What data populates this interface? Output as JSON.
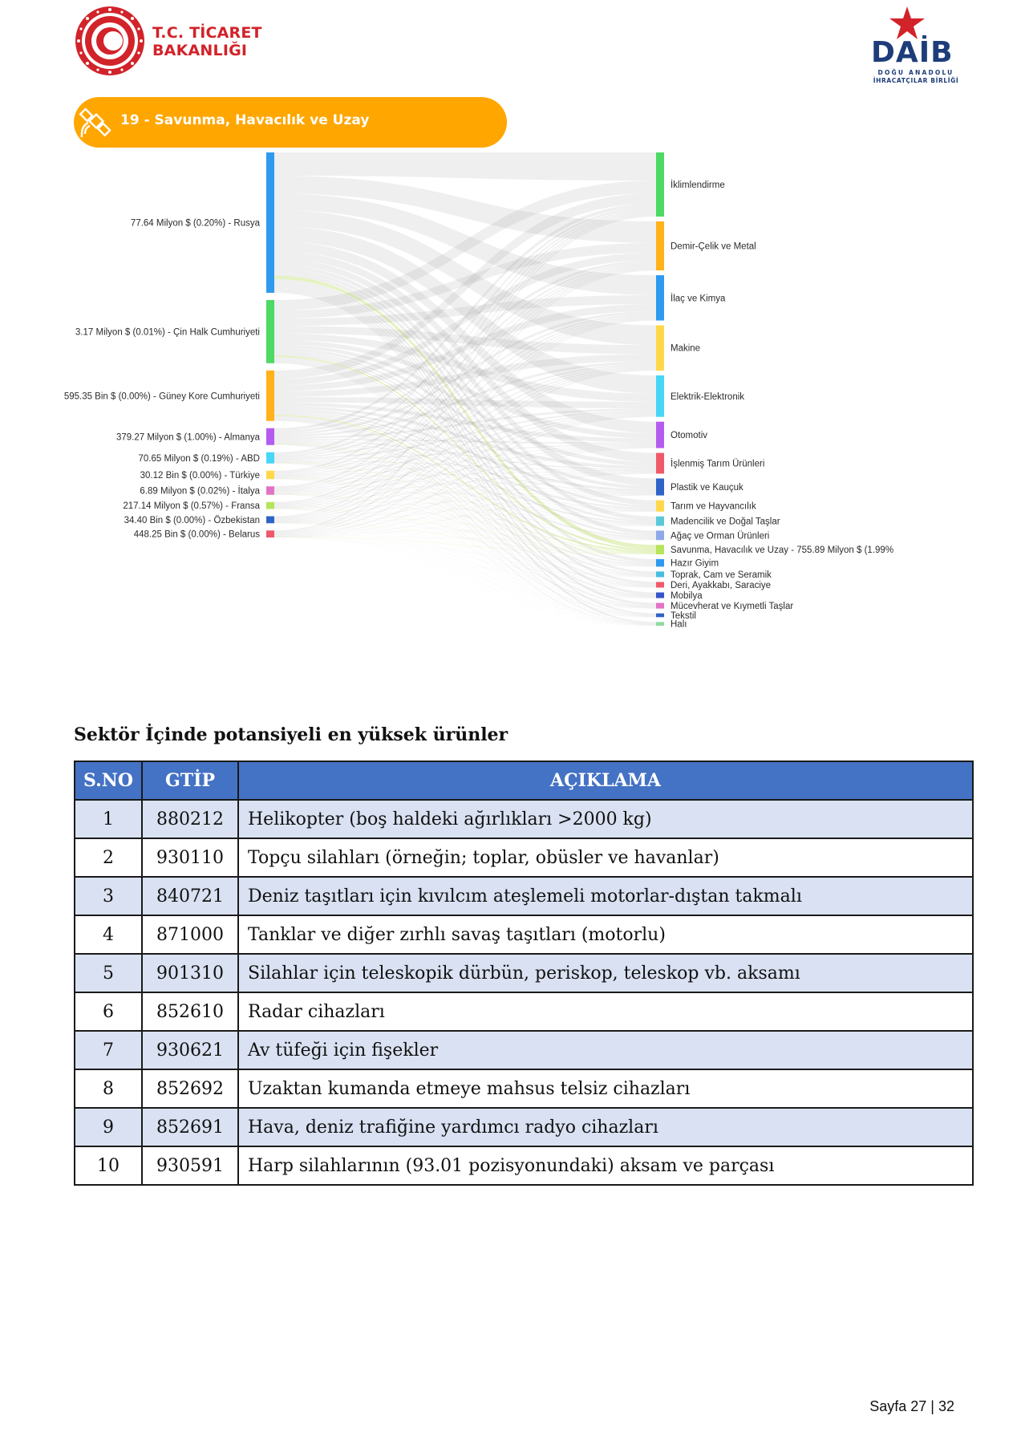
{
  "header": {
    "ministry_line1": "T.C. TİCARET",
    "ministry_line2": "BAKANLIĞI",
    "daib_word": "DAİB",
    "daib_sub1": "DOĞU ANADOLU",
    "daib_sub2": "İHRACATÇILAR BİRLİĞİ"
  },
  "banner": {
    "title": "19 - Savunma, Havacılık ve Uzay"
  },
  "chart_data": {
    "type": "sankey",
    "title": "19 - Savunma, Havacılık ve Uzay",
    "sources": [
      {
        "label": "77.64 Milyon $ (0.20%) - Rusya",
        "color": "#2e9af0",
        "weight": 100
      },
      {
        "label": "3.17 Milyon $ (0.01%) - Çin Halk Cumhuriyeti",
        "color": "#4cd964",
        "weight": 45
      },
      {
        "label": "595.35 Bin $ (0.00%) - Güney Kore Cumhuriyeti",
        "color": "#ffb21a",
        "weight": 36
      },
      {
        "label": "379.27 Milyon $ (1.00%) - Almanya",
        "color": "#b45cf0",
        "weight": 12
      },
      {
        "label": "70.65 Milyon $ (0.19%) - ABD",
        "color": "#47d6f5",
        "weight": 8
      },
      {
        "label": "30.12 Bin $ (0.00%) - Türkiye",
        "color": "#ffd84a",
        "weight": 6
      },
      {
        "label": "6.89 Milyon $ (0.02%) - İtalya",
        "color": "#e372c6",
        "weight": 6
      },
      {
        "label": "217.14 Milyon $ (0.57%) - Fransa",
        "color": "#b6e45a",
        "weight": 5
      },
      {
        "label": "34.40 Bin $ (0.00%) - Özbekistan",
        "color": "#2f63c7",
        "weight": 5
      },
      {
        "label": "448.25 Bin $ (0.00%) - Belarus",
        "color": "#ef5a6a",
        "weight": 5
      }
    ],
    "targets": [
      {
        "label": "İklimlendirme",
        "color": "#4cd964",
        "weight": 34
      },
      {
        "label": "Demir-Çelik ve Metal",
        "color": "#ffb21a",
        "weight": 26
      },
      {
        "label": "İlaç ve Kimya",
        "color": "#2e9af0",
        "weight": 24
      },
      {
        "label": "Makine",
        "color": "#ffd84a",
        "weight": 24
      },
      {
        "label": "Elektrik-Elektronik",
        "color": "#47d6f5",
        "weight": 22
      },
      {
        "label": "Otomotiv",
        "color": "#b45cf0",
        "weight": 14
      },
      {
        "label": "İşlenmiş Tarım Ürünleri",
        "color": "#ef5a6a",
        "weight": 11
      },
      {
        "label": "Plastik ve Kauçuk",
        "color": "#2f63c7",
        "weight": 9
      },
      {
        "label": "Tarım ve Hayvancılık",
        "color": "#ffd84a",
        "weight": 6
      },
      {
        "label": "Madencilik ve Doğal Taşlar",
        "color": "#5bc8d8",
        "weight": 5
      },
      {
        "label": "Ağaç ve Orman Ürünleri",
        "color": "#8ea8e8",
        "weight": 5
      },
      {
        "label": "Savunma, Havacılık ve Uzay - 755.89 Milyon $ (1.99%",
        "color": "#b6e45a",
        "weight": 5
      },
      {
        "label": "Hazır Giyim",
        "color": "#2e9af0",
        "weight": 4
      },
      {
        "label": "Toprak, Cam ve Seramik",
        "color": "#47bde0",
        "weight": 3
      },
      {
        "label": "Deri, Ayakkabı, Saraciye",
        "color": "#ef5a6a",
        "weight": 3
      },
      {
        "label": "Mobilya",
        "color": "#3355c8",
        "weight": 3
      },
      {
        "label": "Mücevherat ve Kıymetli Taşlar",
        "color": "#e372c6",
        "weight": 3
      },
      {
        "label": "Tekstil",
        "color": "#2f63c7",
        "weight": 2
      },
      {
        "label": "Halı",
        "color": "#8edba0",
        "weight": 2
      }
    ],
    "highlight_target": "Savunma, Havacılık ve Uzay - 755.89 Milyon $ (1.99%"
  },
  "section": {
    "title": "Sektör İçinde potansiyeli en yüksek ürünler"
  },
  "table": {
    "headers": [
      "S.NO",
      "GTİP",
      "AÇIKLAMA"
    ],
    "rows": [
      {
        "no": "1",
        "gtip": "880212",
        "desc": "Helikopter (boş haldeki ağırlıkları >2000 kg)"
      },
      {
        "no": "2",
        "gtip": "930110",
        "desc": "Topçu silahları (örneğin; toplar, obüsler ve havanlar)"
      },
      {
        "no": "3",
        "gtip": "840721",
        "desc": "Deniz taşıtları için kıvılcım ateşlemeli motorlar-dıştan takmalı"
      },
      {
        "no": "4",
        "gtip": "871000",
        "desc": "Tanklar ve diğer zırhlı savaş taşıtları (motorlu)"
      },
      {
        "no": "5",
        "gtip": "901310",
        "desc": "Silahlar için teleskopik dürbün, periskop, teleskop vb. aksamı"
      },
      {
        "no": "6",
        "gtip": "852610",
        "desc": "Radar cihazları"
      },
      {
        "no": "7",
        "gtip": "930621",
        "desc": "Av tüfeği için fişekler"
      },
      {
        "no": "8",
        "gtip": "852692",
        "desc": "Uzaktan kumanda etmeye mahsus telsiz cihazları"
      },
      {
        "no": "9",
        "gtip": "852691",
        "desc": "Hava, deniz trafiğine yardımcı radyo cihazları"
      },
      {
        "no": "10",
        "gtip": "930591",
        "desc": "Harp silahlarının (93.01 pozisyonundaki) aksam ve parçası"
      }
    ]
  },
  "footer": {
    "page": "Sayfa 27 | 32"
  }
}
